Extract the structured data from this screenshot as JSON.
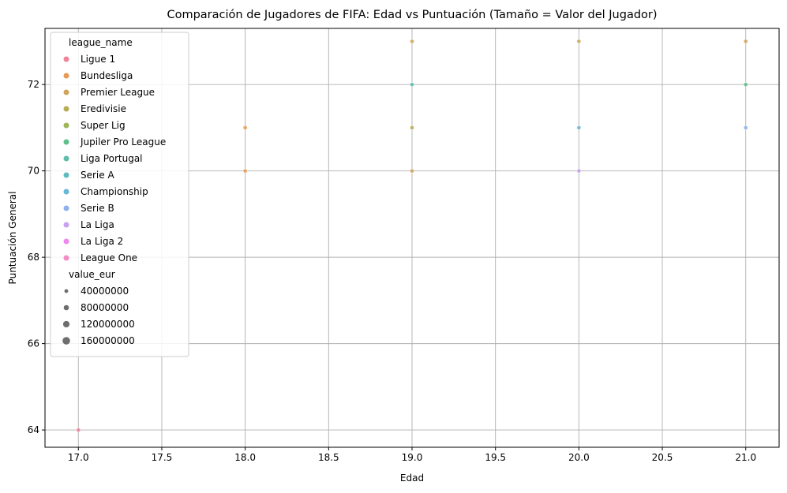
{
  "chart_data": {
    "type": "scatter",
    "title": "Comparación de Jugadores de FIFA: Edad vs Puntuación (Tamaño = Valor del Jugador)",
    "xlabel": "Edad",
    "ylabel": "Puntuación General",
    "xlim": [
      16.8,
      21.2
    ],
    "ylim": [
      63.6,
      73.3
    ],
    "xticks": [
      "17.0",
      "17.5",
      "18.0",
      "18.5",
      "19.0",
      "19.5",
      "20.0",
      "20.5",
      "21.0"
    ],
    "yticks": [
      "64",
      "66",
      "68",
      "70",
      "72"
    ],
    "grid": true,
    "legend_position": "top-left",
    "hue_title": "league_name",
    "size_title": "value_eur",
    "series": [
      {
        "name": "Ligue 1",
        "color": "#f0829b",
        "points": [
          [
            17,
            64
          ]
        ]
      },
      {
        "name": "Bundesliga",
        "color": "#e59b56",
        "points": [
          [
            18,
            71
          ],
          [
            18,
            70
          ]
        ]
      },
      {
        "name": "Premier League",
        "color": "#d0a45d",
        "points": [
          [
            19,
            73
          ],
          [
            20,
            73
          ],
          [
            21,
            73
          ],
          [
            19,
            70
          ]
        ]
      },
      {
        "name": "Eredivisie",
        "color": "#b9ac56",
        "points": [
          [
            19,
            71
          ]
        ]
      },
      {
        "name": "Super Lig",
        "color": "#9fb55a",
        "points": []
      },
      {
        "name": "Jupiler Pro League",
        "color": "#5fbe8a",
        "points": [
          [
            21,
            72
          ]
        ]
      },
      {
        "name": "Liga Portugal",
        "color": "#5dbdaa",
        "points": [
          [
            19,
            72
          ]
        ]
      },
      {
        "name": "Serie A",
        "color": "#5fbac0",
        "points": []
      },
      {
        "name": "Championship",
        "color": "#68b6d8",
        "points": [
          [
            20,
            71
          ]
        ]
      },
      {
        "name": "Serie B",
        "color": "#8fb0ec",
        "points": [
          [
            21,
            71
          ]
        ]
      },
      {
        "name": "La Liga",
        "color": "#c8a0f0",
        "points": [
          [
            20,
            70
          ]
        ]
      },
      {
        "name": "La Liga 2",
        "color": "#ee88ee",
        "points": []
      },
      {
        "name": "League One",
        "color": "#f48bc8",
        "points": []
      }
    ],
    "size_legend": [
      "40000000",
      "80000000",
      "120000000",
      "160000000"
    ],
    "size_legend_color": "#6e6e6e"
  }
}
